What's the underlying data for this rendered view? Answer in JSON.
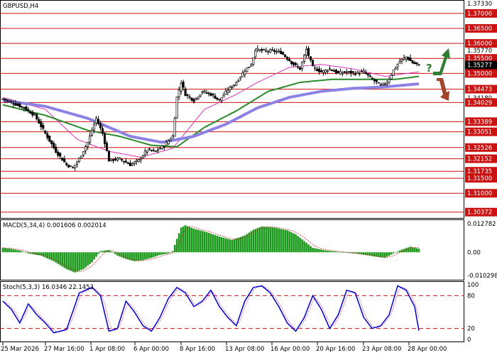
{
  "chart_data": {
    "type": "candlestick",
    "title": "GBPUSD,H4",
    "symbol": "GBPUSD",
    "timeframe": "H4",
    "price_axis": {
      "ylim": [
        1.302,
        1.374
      ],
      "tick_labels": [
        "1.37330",
        "1.37000",
        "1.36500",
        "1.36000",
        "1.35770",
        "1.35500",
        "1.35277",
        "1.35000",
        "1.34473",
        "1.34180",
        "1.34029",
        "1.33389",
        "1.33051",
        "1.32526",
        "1.32152",
        "1.31735",
        "1.31500",
        "1.31000",
        "1.30372"
      ],
      "current_price": "1.35277",
      "support_resistance_levels": [
        1.37,
        1.365,
        1.36,
        1.355,
        1.35,
        1.34473,
        1.34029,
        1.33389,
        1.33051,
        1.32526,
        1.32152,
        1.31735,
        1.315,
        1.31,
        1.30372
      ]
    },
    "time_axis": {
      "labels": [
        "25 Mar 2026",
        "27 Mar 16:00",
        "1 Apr 08:00",
        "6 Apr 00:00",
        "8 Apr 16:00",
        "13 Apr 08:00",
        "16 Apr 00:00",
        "20 Apr 16:00",
        "23 Apr 08:00",
        "28 Apr 00:00"
      ]
    },
    "candle_close_path": [
      {
        "i": 0,
        "v": 1.3415
      },
      {
        "i": 5,
        "v": 1.34
      },
      {
        "i": 10,
        "v": 1.3385
      },
      {
        "i": 15,
        "v": 1.336
      },
      {
        "i": 20,
        "v": 1.33
      },
      {
        "i": 25,
        "v": 1.324
      },
      {
        "i": 30,
        "v": 1.3195
      },
      {
        "i": 33,
        "v": 1.3185
      },
      {
        "i": 36,
        "v": 1.3215
      },
      {
        "i": 40,
        "v": 1.327
      },
      {
        "i": 44,
        "v": 1.335
      },
      {
        "i": 47,
        "v": 1.33
      },
      {
        "i": 50,
        "v": 1.321
      },
      {
        "i": 55,
        "v": 1.3215
      },
      {
        "i": 60,
        "v": 1.3195
      },
      {
        "i": 64,
        "v": 1.321
      },
      {
        "i": 68,
        "v": 1.3245
      },
      {
        "i": 72,
        "v": 1.324
      },
      {
        "i": 76,
        "v": 1.326
      },
      {
        "i": 80,
        "v": 1.329
      },
      {
        "i": 82,
        "v": 1.342
      },
      {
        "i": 84,
        "v": 1.347
      },
      {
        "i": 86,
        "v": 1.343
      },
      {
        "i": 90,
        "v": 1.341
      },
      {
        "i": 94,
        "v": 1.344
      },
      {
        "i": 98,
        "v": 1.343
      },
      {
        "i": 102,
        "v": 1.341
      },
      {
        "i": 106,
        "v": 1.3445
      },
      {
        "i": 110,
        "v": 1.347
      },
      {
        "i": 114,
        "v": 1.351
      },
      {
        "i": 117,
        "v": 1.353
      },
      {
        "i": 119,
        "v": 1.358
      },
      {
        "i": 123,
        "v": 1.3575
      },
      {
        "i": 127,
        "v": 1.3575
      },
      {
        "i": 131,
        "v": 1.357
      },
      {
        "i": 134,
        "v": 1.355
      },
      {
        "i": 137,
        "v": 1.353
      },
      {
        "i": 140,
        "v": 1.3515
      },
      {
        "i": 143,
        "v": 1.358
      },
      {
        "i": 146,
        "v": 1.352
      },
      {
        "i": 150,
        "v": 1.3505
      },
      {
        "i": 154,
        "v": 1.3515
      },
      {
        "i": 158,
        "v": 1.35
      },
      {
        "i": 162,
        "v": 1.3505
      },
      {
        "i": 166,
        "v": 1.35
      },
      {
        "i": 170,
        "v": 1.3505
      },
      {
        "i": 174,
        "v": 1.348
      },
      {
        "i": 178,
        "v": 1.346
      },
      {
        "i": 181,
        "v": 1.347
      },
      {
        "i": 184,
        "v": 1.351
      },
      {
        "i": 187,
        "v": 1.354
      },
      {
        "i": 190,
        "v": 1.3555
      },
      {
        "i": 193,
        "v": 1.3535
      },
      {
        "i": 196,
        "v": 1.35277
      }
    ],
    "moving_averages": [
      {
        "color": "#dd33bb",
        "points": [
          [
            0,
            1.342
          ],
          [
            20,
            1.338
          ],
          [
            35,
            1.328
          ],
          [
            50,
            1.324
          ],
          [
            65,
            1.322
          ],
          [
            80,
            1.325
          ],
          [
            95,
            1.338
          ],
          [
            110,
            1.343
          ],
          [
            120,
            1.347
          ],
          [
            135,
            1.352
          ],
          [
            150,
            1.353
          ],
          [
            165,
            1.3515
          ],
          [
            180,
            1.349
          ],
          [
            196,
            1.3505
          ]
        ]
      },
      {
        "color": "#2a8a2a",
        "points": [
          [
            0,
            1.3395
          ],
          [
            20,
            1.336
          ],
          [
            40,
            1.331
          ],
          [
            55,
            1.329
          ],
          [
            70,
            1.326
          ],
          [
            82,
            1.3255
          ],
          [
            95,
            1.332
          ],
          [
            110,
            1.3375
          ],
          [
            125,
            1.344
          ],
          [
            140,
            1.347
          ],
          [
            155,
            1.348
          ],
          [
            170,
            1.348
          ],
          [
            185,
            1.348
          ],
          [
            196,
            1.349
          ]
        ]
      },
      {
        "color": "#8c82e6",
        "points": [
          [
            0,
            1.341
          ],
          [
            20,
            1.339
          ],
          [
            40,
            1.335
          ],
          [
            60,
            1.329
          ],
          [
            75,
            1.327
          ],
          [
            90,
            1.329
          ],
          [
            105,
            1.333
          ],
          [
            120,
            1.3385
          ],
          [
            135,
            1.342
          ],
          [
            150,
            1.344
          ],
          [
            165,
            1.345
          ],
          [
            180,
            1.3455
          ],
          [
            196,
            1.3465
          ]
        ]
      }
    ],
    "forecast_arrows": {
      "up": "#2e7d32",
      "down": "#a0442a",
      "question": "?"
    },
    "macd": {
      "label": "MACD(5,34,4) 0.001606 0.002014",
      "tick_labels": [
        "0.012782",
        "0.00",
        "-0.010298"
      ],
      "ylim": [
        -0.0116,
        0.0137
      ],
      "histogram_path": [
        [
          0,
          0.002
        ],
        [
          4,
          0.0015
        ],
        [
          8,
          0.0008
        ],
        [
          12,
          -0.0005
        ],
        [
          18,
          -0.0015
        ],
        [
          24,
          -0.004
        ],
        [
          30,
          -0.0075
        ],
        [
          34,
          -0.009
        ],
        [
          38,
          -0.0075
        ],
        [
          42,
          -0.0045
        ],
        [
          46,
          0.0005
        ],
        [
          50,
          0.001
        ],
        [
          54,
          -0.0015
        ],
        [
          58,
          -0.003
        ],
        [
          62,
          -0.004
        ],
        [
          66,
          -0.0035
        ],
        [
          70,
          -0.0025
        ],
        [
          74,
          -0.0012
        ],
        [
          78,
          -0.0005
        ],
        [
          80,
          0.0005
        ],
        [
          82,
          0.006
        ],
        [
          84,
          0.011
        ],
        [
          86,
          0.012
        ],
        [
          90,
          0.0105
        ],
        [
          96,
          0.009
        ],
        [
          102,
          0.007
        ],
        [
          108,
          0.0055
        ],
        [
          114,
          0.0075
        ],
        [
          118,
          0.01
        ],
        [
          122,
          0.0115
        ],
        [
          128,
          0.011
        ],
        [
          134,
          0.0098
        ],
        [
          138,
          0.008
        ],
        [
          142,
          0.005
        ],
        [
          146,
          0.002
        ],
        [
          152,
          0.0008
        ],
        [
          160,
          0.0
        ],
        [
          168,
          -0.0008
        ],
        [
          176,
          -0.002
        ],
        [
          180,
          -0.0025
        ],
        [
          184,
          -0.0005
        ],
        [
          188,
          0.0012
        ],
        [
          192,
          0.0025
        ],
        [
          196,
          0.0016
        ]
      ],
      "signal_color": "#cc2222",
      "histogram_color": "#1a9a1a"
    },
    "stochastic": {
      "label": "Stoch(5,3,3) 16.0346 22.1453",
      "tick_labels": [
        "100",
        "80",
        "20",
        "0"
      ],
      "ylim": [
        0,
        100
      ],
      "levels": [
        80,
        20
      ],
      "k_color": "#0000cc",
      "d_color": "#cc44cc",
      "k_path": [
        [
          0,
          70
        ],
        [
          4,
          55
        ],
        [
          8,
          30
        ],
        [
          12,
          65
        ],
        [
          16,
          45
        ],
        [
          20,
          30
        ],
        [
          24,
          12
        ],
        [
          30,
          18
        ],
        [
          36,
          85
        ],
        [
          42,
          95
        ],
        [
          46,
          80
        ],
        [
          50,
          15
        ],
        [
          54,
          20
        ],
        [
          58,
          70
        ],
        [
          62,
          50
        ],
        [
          66,
          25
        ],
        [
          70,
          15
        ],
        [
          74,
          40
        ],
        [
          78,
          75
        ],
        [
          82,
          95
        ],
        [
          86,
          85
        ],
        [
          90,
          60
        ],
        [
          94,
          70
        ],
        [
          98,
          90
        ],
        [
          102,
          60
        ],
        [
          106,
          40
        ],
        [
          110,
          25
        ],
        [
          114,
          70
        ],
        [
          118,
          95
        ],
        [
          122,
          98
        ],
        [
          126,
          85
        ],
        [
          130,
          60
        ],
        [
          134,
          30
        ],
        [
          138,
          15
        ],
        [
          142,
          40
        ],
        [
          146,
          80
        ],
        [
          150,
          55
        ],
        [
          154,
          20
        ],
        [
          158,
          45
        ],
        [
          162,
          90
        ],
        [
          166,
          85
        ],
        [
          170,
          40
        ],
        [
          174,
          20
        ],
        [
          178,
          25
        ],
        [
          182,
          45
        ],
        [
          186,
          98
        ],
        [
          190,
          90
        ],
        [
          194,
          60
        ],
        [
          196,
          16
        ]
      ]
    }
  }
}
